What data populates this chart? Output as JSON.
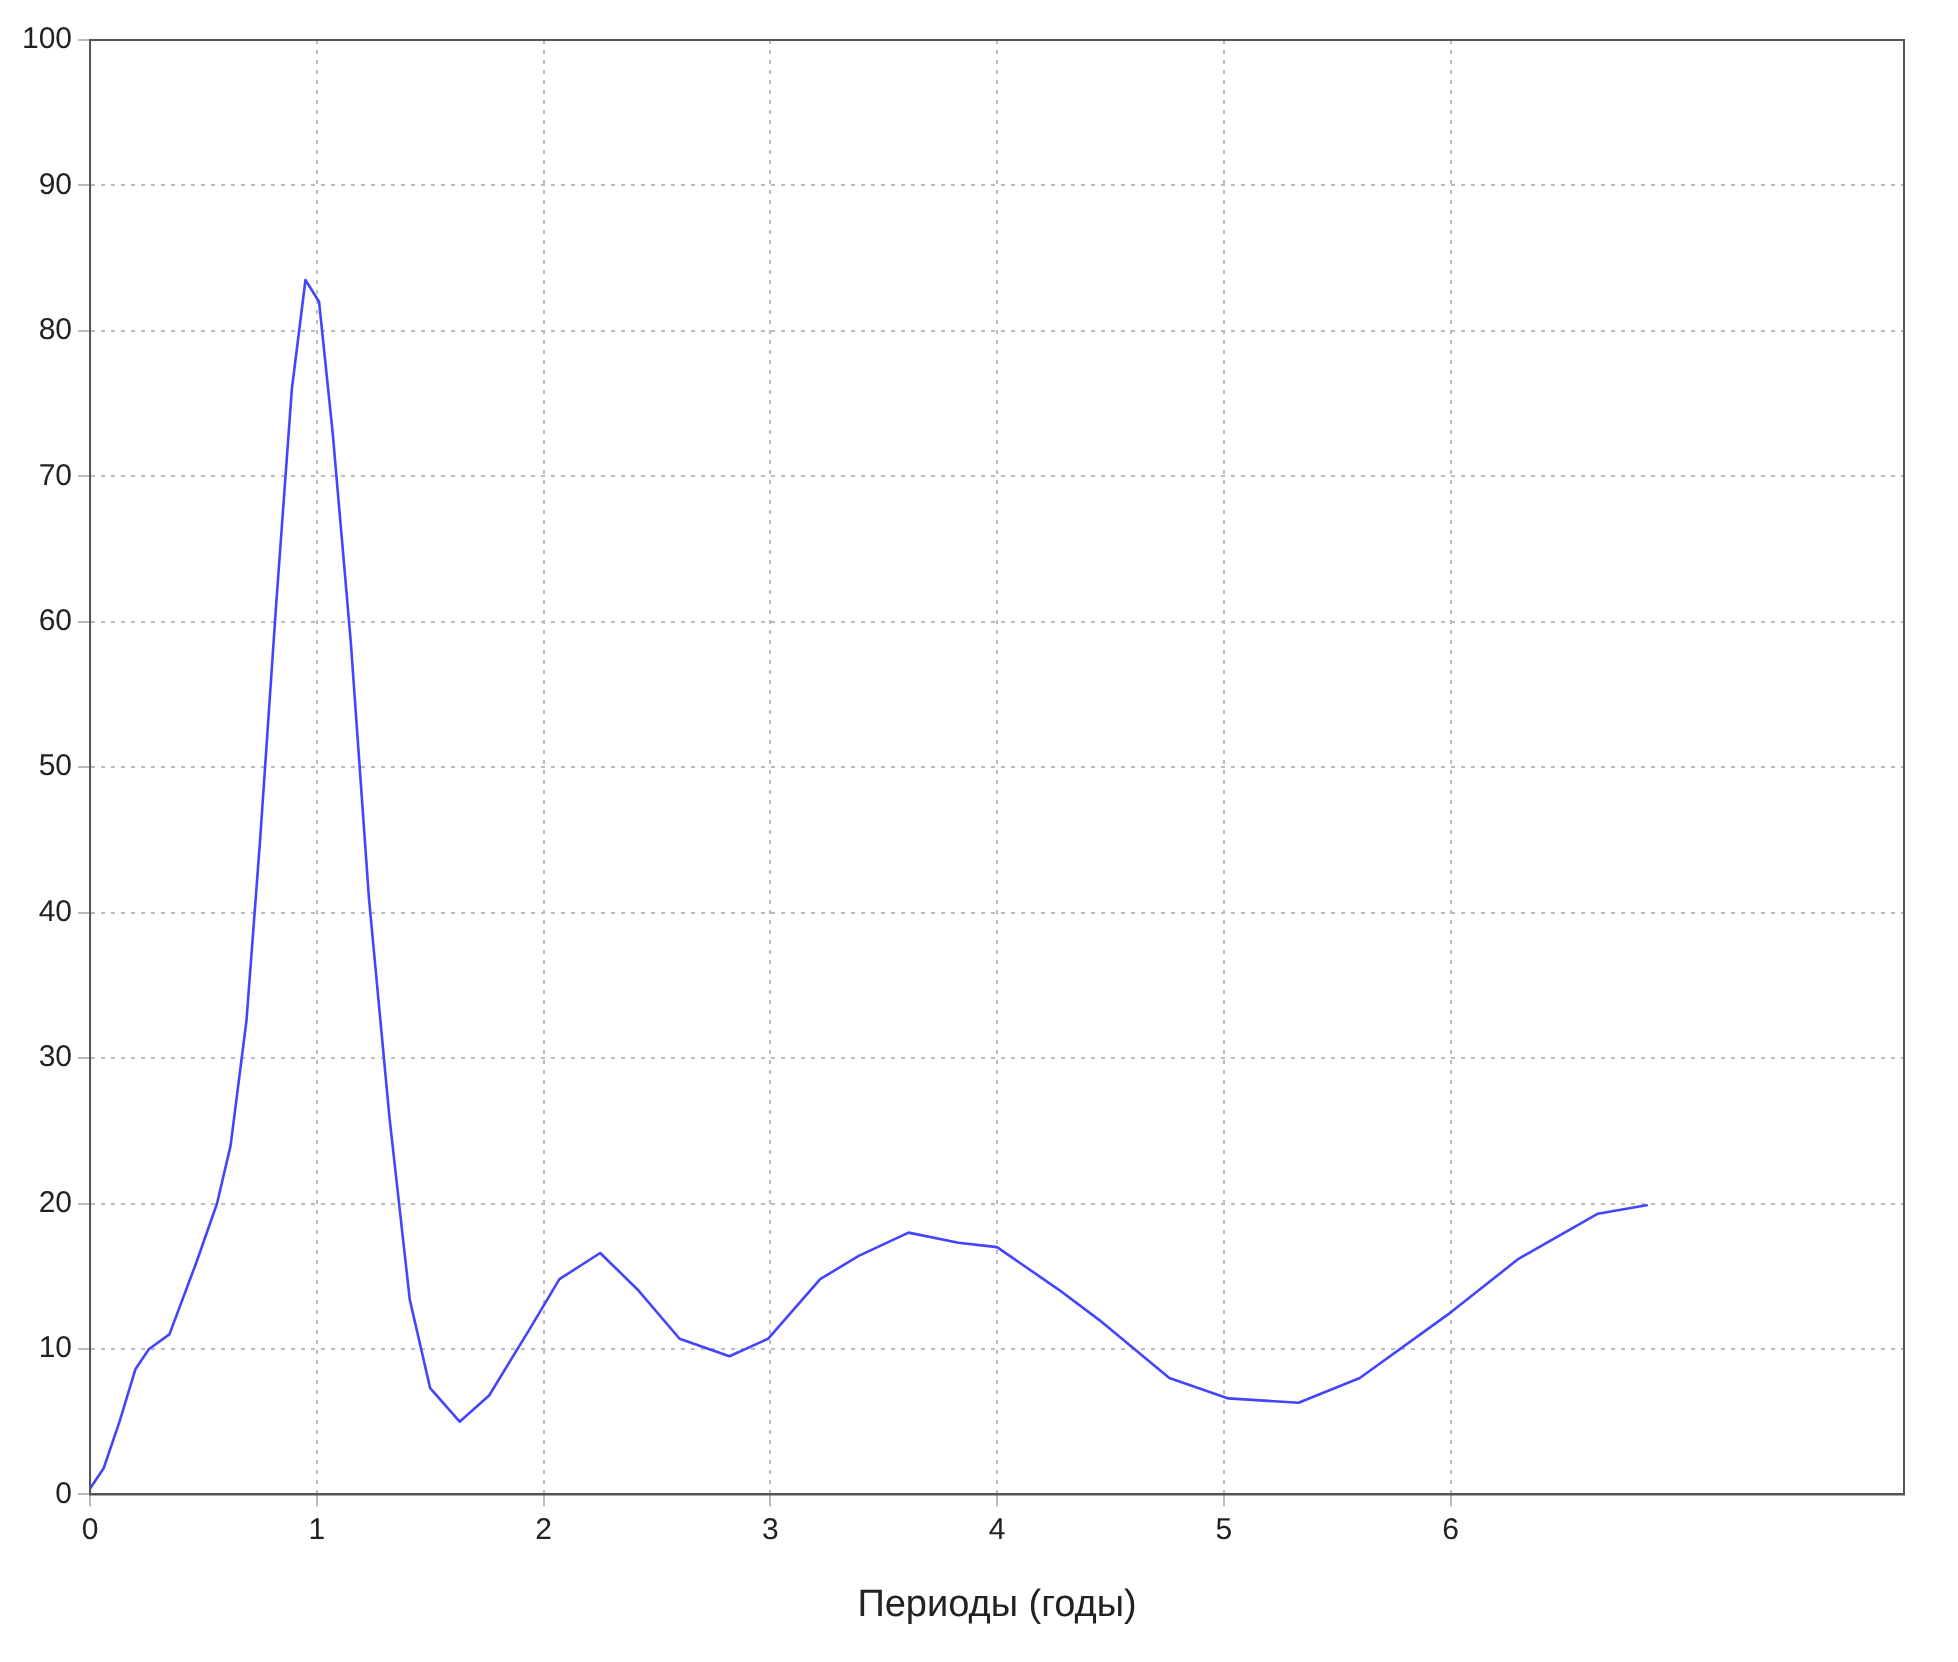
{
  "chart_data": {
    "type": "line",
    "xlabel": "Периоды (годы)",
    "xlim": [
      0,
      8
    ],
    "xticks": [
      0,
      1,
      2,
      3,
      4,
      5,
      6
    ],
    "ylim": [
      0,
      100
    ],
    "yticks": [
      0,
      10,
      20,
      30,
      40,
      50,
      60,
      70,
      80,
      90,
      100
    ],
    "grid": true,
    "legend": false,
    "marker": "none",
    "line_style": "solid",
    "series": [
      {
        "color": "#4444ff",
        "x": [
          0,
          0.06,
          0.13,
          0.2,
          0.26,
          0.35,
          0.47,
          0.56,
          0.62,
          0.69,
          0.75,
          0.82,
          0.89,
          0.95,
          1.01,
          1.07,
          1.15,
          1.23,
          1.32,
          1.41,
          1.5,
          1.63,
          1.76,
          1.94,
          2.07,
          2.25,
          2.42,
          2.6,
          2.82,
          2.99,
          3.22,
          3.39,
          3.61,
          3.83,
          4.0,
          4.27,
          4.45,
          4.76,
          5.02,
          5.33,
          5.6,
          6.0,
          6.3,
          6.65,
          6.87
        ],
        "values": [
          0.4,
          1.8,
          5,
          8.6,
          10,
          11,
          16,
          20,
          24,
          32.6,
          45,
          61,
          76,
          83.5,
          82,
          73,
          58.6,
          41,
          26,
          13.4,
          7.3,
          5,
          6.8,
          11.4,
          14.8,
          16.6,
          14,
          10.7,
          9.5,
          10.7,
          14.8,
          16.4,
          18,
          17.3,
          17,
          14.1,
          12,
          8,
          6.6,
          6.3,
          8,
          12.5,
          16.2,
          19.3,
          19.9
        ]
      }
    ]
  }
}
